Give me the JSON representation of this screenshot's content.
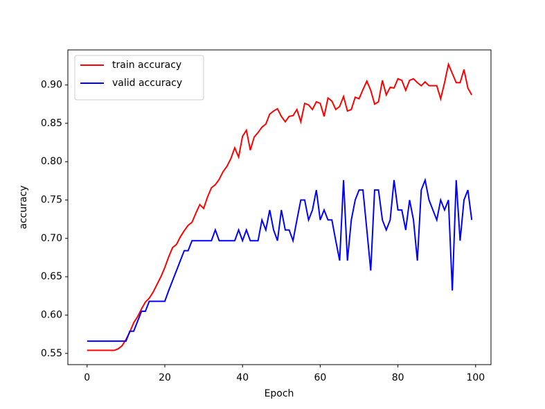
{
  "chart_data": {
    "type": "line",
    "xlabel": "Epoch",
    "ylabel": "accuracy",
    "x": [
      0,
      1,
      2,
      3,
      4,
      5,
      6,
      7,
      8,
      9,
      10,
      11,
      12,
      13,
      14,
      15,
      16,
      17,
      18,
      19,
      20,
      21,
      22,
      23,
      24,
      25,
      26,
      27,
      28,
      29,
      30,
      31,
      32,
      33,
      34,
      35,
      36,
      37,
      38,
      39,
      40,
      41,
      42,
      43,
      44,
      45,
      46,
      47,
      48,
      49,
      50,
      51,
      52,
      53,
      54,
      55,
      56,
      57,
      58,
      59,
      60,
      61,
      62,
      63,
      64,
      65,
      66,
      67,
      68,
      69,
      70,
      71,
      72,
      73,
      74,
      75,
      76,
      77,
      78,
      79,
      80,
      81,
      82,
      83,
      84,
      85,
      86,
      87,
      88,
      89,
      90,
      91,
      92,
      93,
      94,
      95,
      96,
      97,
      98,
      99
    ],
    "series": [
      {
        "name": "train accuracy",
        "color": "#ff0000",
        "values": [
          0.554,
          0.554,
          0.554,
          0.554,
          0.554,
          0.554,
          0.554,
          0.554,
          0.556,
          0.56,
          0.568,
          0.578,
          0.59,
          0.598,
          0.608,
          0.617,
          0.622,
          0.63,
          0.64,
          0.65,
          0.662,
          0.676,
          0.688,
          0.692,
          0.702,
          0.71,
          0.717,
          0.721,
          0.733,
          0.744,
          0.739,
          0.754,
          0.766,
          0.77,
          0.777,
          0.787,
          0.794,
          0.804,
          0.818,
          0.806,
          0.833,
          0.841,
          0.815,
          0.832,
          0.838,
          0.845,
          0.849,
          0.862,
          0.866,
          0.869,
          0.859,
          0.852,
          0.859,
          0.86,
          0.868,
          0.852,
          0.876,
          0.874,
          0.868,
          0.878,
          0.876,
          0.859,
          0.883,
          0.879,
          0.868,
          0.872,
          0.885,
          0.866,
          0.868,
          0.884,
          0.882,
          0.894,
          0.905,
          0.893,
          0.875,
          0.878,
          0.906,
          0.887,
          0.897,
          0.896,
          0.908,
          0.906,
          0.893,
          0.906,
          0.908,
          0.903,
          0.899,
          0.904,
          0.899,
          0.899,
          0.899,
          0.882,
          0.903,
          0.927,
          0.915,
          0.903,
          0.903,
          0.92,
          0.896,
          0.887
        ]
      },
      {
        "name": "valid accuracy",
        "color": "#0000ff",
        "values": [
          0.566,
          0.566,
          0.566,
          0.566,
          0.566,
          0.566,
          0.566,
          0.566,
          0.566,
          0.566,
          0.566,
          0.579,
          0.579,
          0.592,
          0.605,
          0.605,
          0.618,
          0.618,
          0.618,
          0.618,
          0.618,
          0.632,
          0.645,
          0.658,
          0.671,
          0.684,
          0.684,
          0.697,
          0.697,
          0.697,
          0.697,
          0.697,
          0.697,
          0.711,
          0.697,
          0.697,
          0.697,
          0.697,
          0.697,
          0.711,
          0.697,
          0.711,
          0.697,
          0.697,
          0.697,
          0.724,
          0.711,
          0.737,
          0.711,
          0.697,
          0.737,
          0.711,
          0.711,
          0.697,
          0.724,
          0.75,
          0.75,
          0.724,
          0.737,
          0.763,
          0.724,
          0.737,
          0.724,
          0.724,
          0.697,
          0.671,
          0.776,
          0.671,
          0.724,
          0.75,
          0.763,
          0.763,
          0.711,
          0.658,
          0.763,
          0.763,
          0.724,
          0.711,
          0.724,
          0.776,
          0.737,
          0.737,
          0.711,
          0.75,
          0.724,
          0.671,
          0.763,
          0.776,
          0.75,
          0.737,
          0.724,
          0.75,
          0.737,
          0.75,
          0.632,
          0.776,
          0.697,
          0.75,
          0.763,
          0.724
        ]
      }
    ],
    "xlim": [
      -4.95,
      103.95
    ],
    "xticks": [
      0,
      20,
      40,
      60,
      80,
      100
    ],
    "ylim": [
      0.5354,
      0.9457
    ],
    "yticks": [
      {
        "value": 0.55,
        "label": "0.55"
      },
      {
        "value": 0.6,
        "label": "0.60"
      },
      {
        "value": 0.65,
        "label": "0.65"
      },
      {
        "value": 0.7,
        "label": "0.70"
      },
      {
        "value": 0.75,
        "label": "0.75"
      },
      {
        "value": 0.8,
        "label": "0.80"
      },
      {
        "value": 0.85,
        "label": "0.85"
      },
      {
        "value": 0.9,
        "label": "0.90"
      }
    ],
    "grid": false,
    "legend": "upper left"
  }
}
